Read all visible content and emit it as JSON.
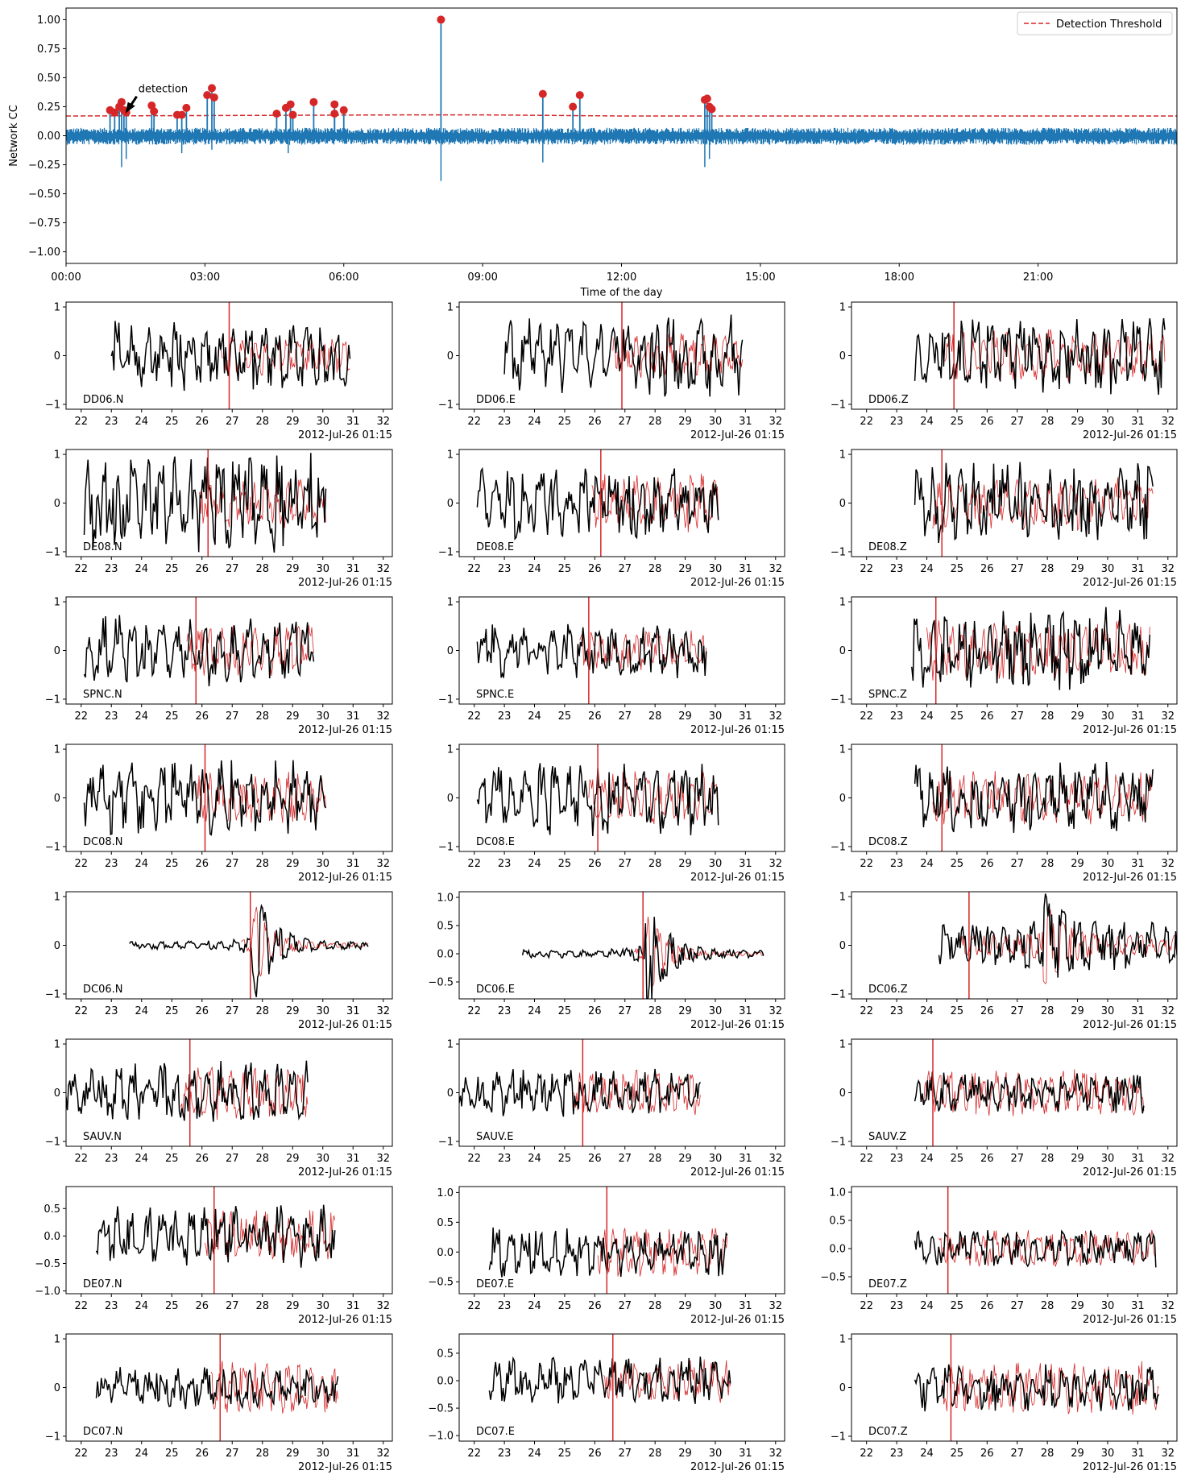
{
  "colors": {
    "trace": "#1f77b4",
    "threshold": "#d62728",
    "detection": "#d62728",
    "data": "#000000",
    "template": "#d62728",
    "pick": "#d62728",
    "axis": "#000000"
  },
  "chart_data": [
    {
      "type": "line",
      "title": "",
      "xlabel": "Time of the day",
      "ylabel": "Network CC",
      "xlim": [
        0,
        24
      ],
      "ylim": [
        -1.1,
        1.1
      ],
      "xticks": [
        {
          "value": 0,
          "label": "00:00"
        },
        {
          "value": 3,
          "label": "03:00"
        },
        {
          "value": 6,
          "label": "06:00"
        },
        {
          "value": 9,
          "label": "09:00"
        },
        {
          "value": 12,
          "label": "12:00"
        },
        {
          "value": 15,
          "label": "15:00"
        },
        {
          "value": 18,
          "label": "18:00"
        },
        {
          "value": 21,
          "label": "21:00"
        }
      ],
      "yticks": [
        {
          "value": 1.0,
          "label": "1.00"
        },
        {
          "value": 0.75,
          "label": "0.75"
        },
        {
          "value": 0.5,
          "label": "0.50"
        },
        {
          "value": 0.25,
          "label": "0.25"
        },
        {
          "value": 0.0,
          "label": "0.00"
        },
        {
          "value": -0.25,
          "label": "−0.25"
        },
        {
          "value": -0.5,
          "label": "−0.50"
        },
        {
          "value": -0.75,
          "label": "−0.75"
        },
        {
          "value": -1.0,
          "label": "−1.00"
        }
      ],
      "legend": {
        "label": "Detection Threshold",
        "position": "top-right"
      },
      "annotation": {
        "text": "detection",
        "x": 1.3,
        "y": 0.2
      },
      "threshold": [
        [
          0,
          0.17
        ],
        [
          7.5,
          0.18
        ],
        [
          9,
          0.18
        ],
        [
          12,
          0.17
        ],
        [
          24,
          0.17
        ]
      ],
      "noise_level": 0.05,
      "detections": [
        {
          "x": 0.95,
          "y": 0.22
        },
        {
          "x": 1.05,
          "y": 0.2
        },
        {
          "x": 1.15,
          "y": 0.25
        },
        {
          "x": 1.2,
          "y": 0.29
        },
        {
          "x": 1.25,
          "y": 0.22
        },
        {
          "x": 1.3,
          "y": 0.2
        },
        {
          "x": 1.85,
          "y": 0.26
        },
        {
          "x": 1.9,
          "y": 0.21
        },
        {
          "x": 2.4,
          "y": 0.18
        },
        {
          "x": 2.5,
          "y": 0.18
        },
        {
          "x": 2.6,
          "y": 0.24
        },
        {
          "x": 3.05,
          "y": 0.35
        },
        {
          "x": 3.15,
          "y": 0.41
        },
        {
          "x": 3.2,
          "y": 0.33
        },
        {
          "x": 4.55,
          "y": 0.19
        },
        {
          "x": 4.75,
          "y": 0.24
        },
        {
          "x": 4.85,
          "y": 0.27
        },
        {
          "x": 4.9,
          "y": 0.18
        },
        {
          "x": 5.35,
          "y": 0.29
        },
        {
          "x": 5.8,
          "y": 0.27
        },
        {
          "x": 5.8,
          "y": 0.19
        },
        {
          "x": 6.0,
          "y": 0.22
        },
        {
          "x": 8.1,
          "y": 1.0
        },
        {
          "x": 10.3,
          "y": 0.36
        },
        {
          "x": 10.95,
          "y": 0.25
        },
        {
          "x": 11.1,
          "y": 0.35
        },
        {
          "x": 13.8,
          "y": 0.31
        },
        {
          "x": 13.85,
          "y": 0.32
        },
        {
          "x": 13.9,
          "y": 0.25
        },
        {
          "x": 13.95,
          "y": 0.23
        }
      ],
      "negative_spikes": [
        {
          "x": 1.2,
          "y": -0.27
        },
        {
          "x": 1.3,
          "y": -0.2
        },
        {
          "x": 2.5,
          "y": -0.15
        },
        {
          "x": 3.15,
          "y": -0.12
        },
        {
          "x": 4.8,
          "y": -0.15
        },
        {
          "x": 8.1,
          "y": -0.39
        },
        {
          "x": 10.3,
          "y": -0.23
        },
        {
          "x": 13.8,
          "y": -0.27
        },
        {
          "x": 13.9,
          "y": -0.2
        }
      ]
    },
    {
      "type": "grid-of-line-plots",
      "title": "",
      "rows": 8,
      "columns": 3,
      "xlim": [
        21.5,
        32.3
      ],
      "xticks": [
        22,
        23,
        24,
        25,
        26,
        27,
        28,
        29,
        30,
        31,
        32
      ],
      "xlabel_offset": "2012-Jul-26 01:15",
      "series_legend": {
        "data": "black waveform",
        "template": "red waveform"
      },
      "panels": [
        {
          "station": "DD06.N",
          "start": 23.0,
          "end": 30.9,
          "pick": 26.9,
          "ylim": [
            -1.1,
            1.1
          ],
          "yticks": [
            1,
            0,
            -1
          ],
          "amp": 0.5,
          "tamp": 0.3
        },
        {
          "station": "DD06.E",
          "start": 23.0,
          "end": 30.9,
          "pick": 26.9,
          "ylim": [
            -1.1,
            1.1
          ],
          "yticks": [
            1,
            0,
            -1
          ],
          "amp": 0.6,
          "tamp": 0.35
        },
        {
          "station": "DD06.Z",
          "start": 23.6,
          "end": 31.9,
          "pick": 24.9,
          "ylim": [
            -1.1,
            1.1
          ],
          "yticks": [
            1,
            0,
            -1
          ],
          "amp": 0.55,
          "tamp": 0.4
        },
        {
          "station": "DE08.N",
          "start": 22.1,
          "end": 30.1,
          "pick": 26.2,
          "ylim": [
            -1.1,
            1.1
          ],
          "yticks": [
            1,
            0,
            -1
          ],
          "amp": 0.7,
          "tamp": 0.4
        },
        {
          "station": "DE08.E",
          "start": 22.1,
          "end": 30.1,
          "pick": 26.2,
          "ylim": [
            -1.1,
            1.1
          ],
          "yticks": [
            1,
            0,
            -1
          ],
          "amp": 0.5,
          "tamp": 0.45
        },
        {
          "station": "DE08.Z",
          "start": 23.6,
          "end": 31.5,
          "pick": 24.5,
          "ylim": [
            -1.1,
            1.1
          ],
          "yticks": [
            1,
            0,
            -1
          ],
          "amp": 0.6,
          "tamp": 0.4
        },
        {
          "station": "SPNC.N",
          "start": 22.1,
          "end": 29.7,
          "pick": 25.8,
          "ylim": [
            -1.1,
            1.1
          ],
          "yticks": [
            1,
            0,
            -1
          ],
          "amp": 0.5,
          "tamp": 0.4
        },
        {
          "station": "SPNC.E",
          "start": 22.1,
          "end": 29.7,
          "pick": 25.8,
          "ylim": [
            -1.1,
            1.1
          ],
          "yticks": [
            1,
            0,
            -1
          ],
          "amp": 0.4,
          "tamp": 0.3
        },
        {
          "station": "SPNC.Z",
          "start": 23.5,
          "end": 31.4,
          "pick": 24.3,
          "ylim": [
            -1.1,
            1.1
          ],
          "yticks": [
            1,
            0,
            -1
          ],
          "amp": 0.6,
          "tamp": 0.45
        },
        {
          "station": "DC08.N",
          "start": 22.1,
          "end": 30.1,
          "pick": 26.1,
          "ylim": [
            -1.1,
            1.1
          ],
          "yticks": [
            1,
            0,
            -1
          ],
          "amp": 0.55,
          "tamp": 0.4
        },
        {
          "station": "DC08.E",
          "start": 22.1,
          "end": 30.1,
          "pick": 26.1,
          "ylim": [
            -1.1,
            1.1
          ],
          "yticks": [
            1,
            0,
            -1
          ],
          "amp": 0.55,
          "tamp": 0.4
        },
        {
          "station": "DC08.Z",
          "start": 23.6,
          "end": 31.5,
          "pick": 24.5,
          "ylim": [
            -1.1,
            1.1
          ],
          "yticks": [
            1,
            0,
            -1
          ],
          "amp": 0.5,
          "tamp": 0.4
        },
        {
          "station": "DC06.N",
          "start": 23.6,
          "end": 31.5,
          "pick": 27.6,
          "ylim": [
            -1.1,
            1.1
          ],
          "yticks": [
            1,
            0,
            -1
          ],
          "amp": 0.06,
          "tamp": 0.05,
          "event": 27.8,
          "event_amp": 1.0
        },
        {
          "station": "DC06.E",
          "start": 23.6,
          "end": 31.6,
          "pick": 27.6,
          "ylim": [
            -0.8,
            1.1
          ],
          "yticks": [
            1.0,
            0.5,
            0.0,
            -0.5
          ],
          "yticklabels": [
            "1.0",
            "0.5",
            "0.0",
            "−0.5"
          ],
          "amp": 0.05,
          "tamp": 0.04,
          "event": 27.8,
          "event_amp": 0.9
        },
        {
          "station": "DC06.Z",
          "start": 24.4,
          "end": 32.3,
          "pick": 25.4,
          "ylim": [
            -1.1,
            1.1
          ],
          "yticks": [
            1,
            0,
            -1
          ],
          "amp": 0.35,
          "tamp": 0.25,
          "event": 28.0,
          "event_amp": 0.9
        },
        {
          "station": "SAUV.N",
          "start": 21.5,
          "end": 29.5,
          "pick": 25.6,
          "ylim": [
            -1.1,
            1.1
          ],
          "yticks": [
            1,
            0,
            -1
          ],
          "amp": 0.45,
          "tamp": 0.4
        },
        {
          "station": "SAUV.E",
          "start": 21.5,
          "end": 29.5,
          "pick": 25.6,
          "ylim": [
            -1.1,
            1.1
          ],
          "yticks": [
            1,
            0,
            -1
          ],
          "amp": 0.35,
          "tamp": 0.35
        },
        {
          "station": "SAUV.Z",
          "start": 23.6,
          "end": 31.2,
          "pick": 24.2,
          "ylim": [
            -1.1,
            1.1
          ],
          "yticks": [
            1,
            0,
            -1
          ],
          "amp": 0.3,
          "tamp": 0.35
        },
        {
          "station": "DE07.N",
          "start": 22.5,
          "end": 30.4,
          "pick": 26.4,
          "ylim": [
            -1.05,
            0.9
          ],
          "yticks": [
            0.5,
            0.0,
            -0.5,
            -1.0
          ],
          "yticklabels": [
            "0.5",
            "0.0",
            "−0.5",
            "−1.0"
          ],
          "amp": 0.4,
          "tamp": 0.35
        },
        {
          "station": "DE07.E",
          "start": 22.5,
          "end": 30.4,
          "pick": 26.4,
          "ylim": [
            -0.7,
            1.1
          ],
          "yticks": [
            1.0,
            0.5,
            0.0,
            -0.5
          ],
          "yticklabels": [
            "1.0",
            "0.5",
            "0.0",
            "−0.5"
          ],
          "amp": 0.3,
          "tamp": 0.3
        },
        {
          "station": "DE07.Z",
          "start": 23.6,
          "end": 31.6,
          "pick": 24.7,
          "ylim": [
            -0.8,
            1.1
          ],
          "yticks": [
            1.0,
            0.5,
            0.0,
            -0.5
          ],
          "yticklabels": [
            "1.0",
            "0.5",
            "0.0",
            "−0.5"
          ],
          "amp": 0.25,
          "tamp": 0.25
        },
        {
          "station": "DC07.N",
          "start": 22.5,
          "end": 30.5,
          "pick": 26.6,
          "ylim": [
            -1.1,
            1.1
          ],
          "yticks": [
            1,
            0,
            -1
          ],
          "amp": 0.3,
          "tamp": 0.4
        },
        {
          "station": "DC07.E",
          "start": 22.5,
          "end": 30.5,
          "pick": 26.6,
          "ylim": [
            -1.1,
            0.85
          ],
          "yticks": [
            0.5,
            0.0,
            -0.5,
            -1.0
          ],
          "yticklabels": [
            "0.5",
            "0.0",
            "−0.5",
            "−1.0"
          ],
          "amp": 0.3,
          "tamp": 0.3
        },
        {
          "station": "DC07.Z",
          "start": 23.6,
          "end": 31.7,
          "pick": 24.8,
          "ylim": [
            -1.1,
            1.1
          ],
          "yticks": [
            1,
            0,
            -1
          ],
          "amp": 0.35,
          "tamp": 0.4
        }
      ]
    }
  ]
}
